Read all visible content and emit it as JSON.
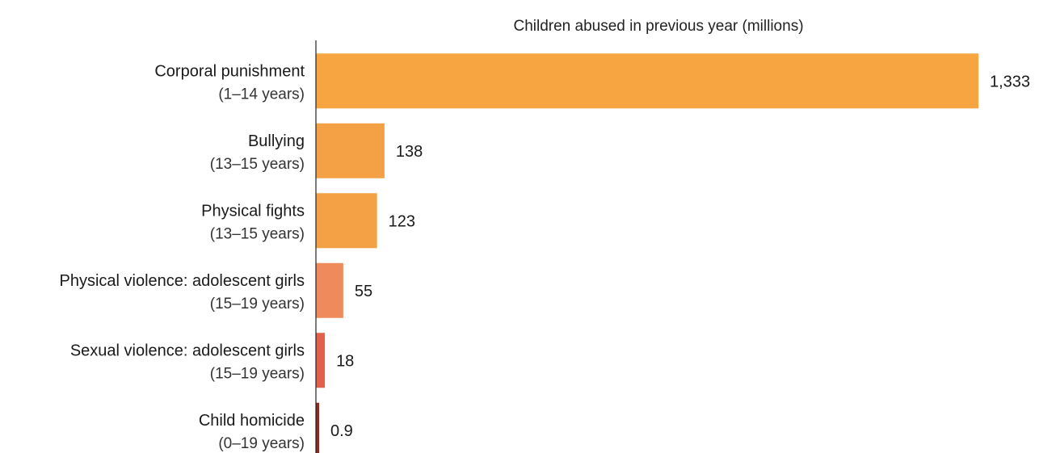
{
  "chart_data": {
    "type": "bar",
    "orientation": "horizontal",
    "title": "Children abused in previous year (millions)",
    "categories": [
      {
        "name": "Corporal punishment",
        "age": "(1–14 years)"
      },
      {
        "name": "Bullying",
        "age": "(13–15 years)"
      },
      {
        "name": "Physical fights",
        "age": "(13–15 years)"
      },
      {
        "name": "Physical violence: adolescent girls",
        "age": "(15–19 years)"
      },
      {
        "name": "Sexual violence: adolescent girls",
        "age": "(15–19 years)"
      },
      {
        "name": "Child homicide",
        "age": "(0–19 years)"
      }
    ],
    "values": [
      1333,
      138,
      123,
      55,
      18,
      0.9
    ],
    "value_labels": [
      "1,333",
      "138",
      "123",
      "55",
      "18",
      "0.9"
    ],
    "colors": [
      "#f6a540",
      "#f4a044",
      "#f4a044",
      "#ee8a5c",
      "#e2604e",
      "#8e2a20"
    ],
    "xlim": [
      0,
      1333
    ],
    "grid": false,
    "legend": "none"
  }
}
